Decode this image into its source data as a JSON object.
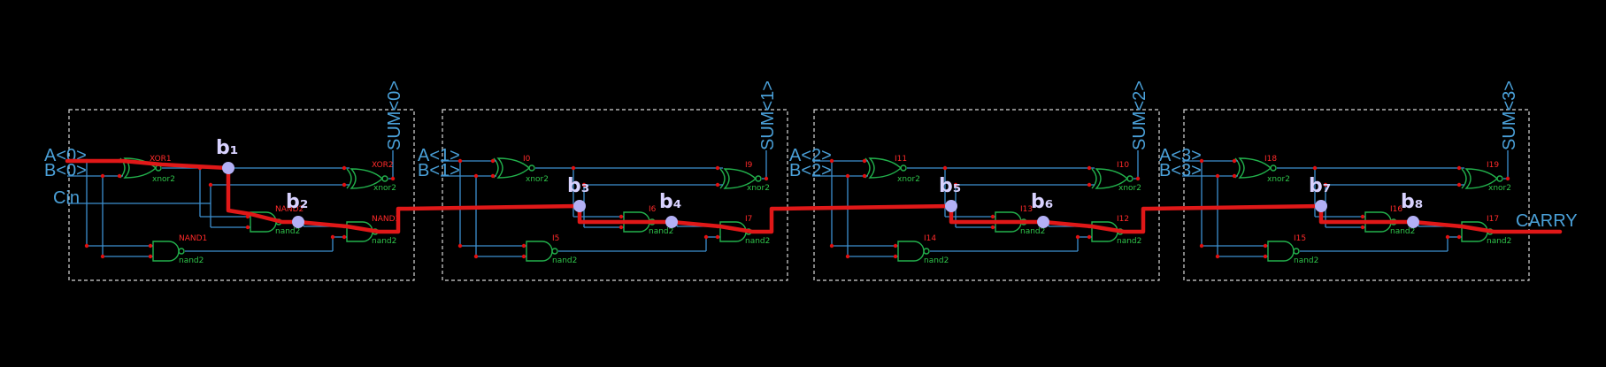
{
  "stages": [
    {
      "a": "A<0>",
      "b": "B<0>",
      "sum": "SUM<0>",
      "cin": "Cin",
      "xor_a_inst": "XOR1",
      "xor_b_inst": "XOR2",
      "nand_mid_inst": "NAND2",
      "nand_low_inst": "NAND1",
      "nand_out_inst": "NAND3",
      "xor_cell": "xnor2",
      "nand_cell": "nand2",
      "marker_a": "b₁",
      "marker_b": "b₂"
    },
    {
      "a": "A<1>",
      "b": "B<1>",
      "sum": "SUM<1>",
      "xor_a_inst": "I0",
      "xor_b_inst": "I9",
      "nand_mid_inst": "I6",
      "nand_low_inst": "I5",
      "nand_out_inst": "I7",
      "xor_cell": "xnor2",
      "nand_cell": "nand2",
      "marker_a": "b₃",
      "marker_b": "b₄"
    },
    {
      "a": "A<2>",
      "b": "B<2>",
      "sum": "SUM<2>",
      "xor_a_inst": "I11",
      "xor_b_inst": "I10",
      "nand_mid_inst": "I13",
      "nand_low_inst": "I14",
      "nand_out_inst": "I12",
      "xor_cell": "xnor2",
      "nand_cell": "nand2",
      "marker_a": "b₅",
      "marker_b": "b₆"
    },
    {
      "a": "A<3>",
      "b": "B<3>",
      "sum": "SUM<3>",
      "xor_a_inst": "I18",
      "xor_b_inst": "I19",
      "nand_mid_inst": "I16",
      "nand_low_inst": "I15",
      "nand_out_inst": "I17",
      "xor_cell": "xnor2",
      "nand_cell": "nand2",
      "marker_a": "b₇",
      "marker_b": "b₈"
    }
  ],
  "carry_out": "CARRY",
  "colors": {
    "background": "#000000",
    "wire": "#3c8fd0",
    "gate": "#22b14c",
    "instance_label": "#ff2a2a",
    "critical_path": "#e01818",
    "marker": "#b3b0f5"
  }
}
